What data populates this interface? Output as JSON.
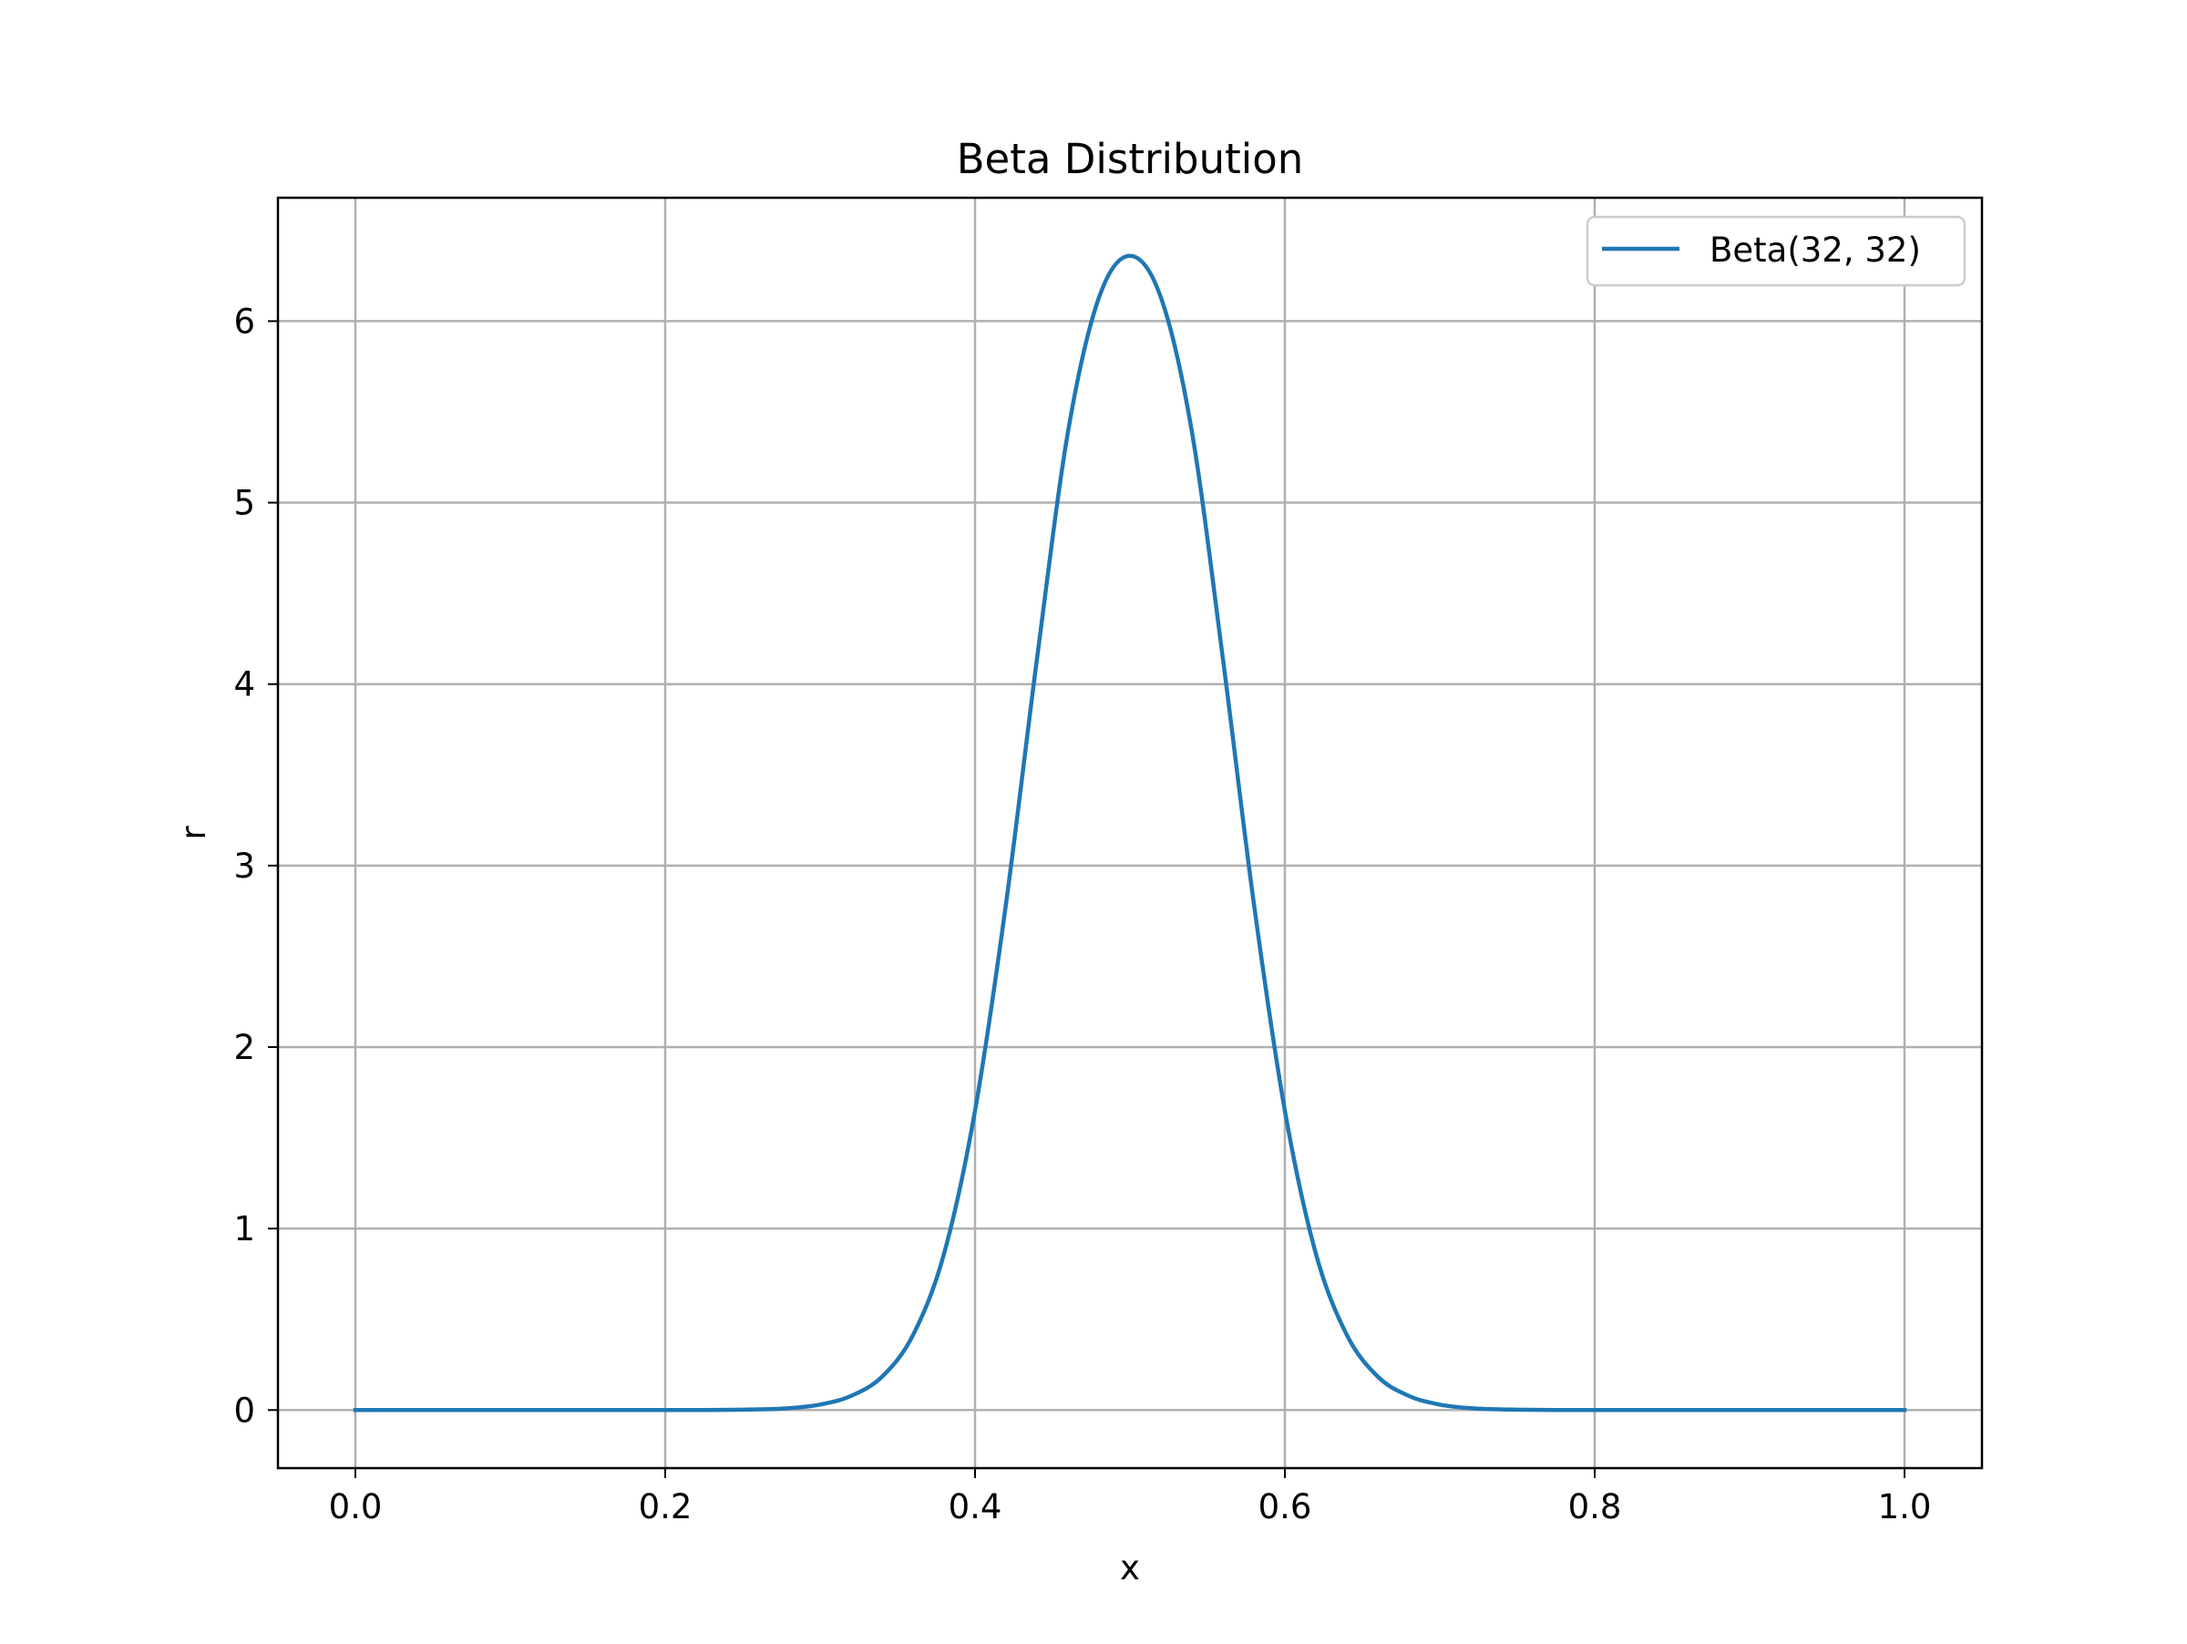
{
  "chart_data": {
    "type": "line",
    "title": "Beta Distribution",
    "xlabel": "x",
    "ylabel": "r",
    "xlim": [
      -0.05,
      1.05
    ],
    "ylim": [
      -0.32,
      6.68
    ],
    "xticks": [
      "0.0",
      "0.2",
      "0.4",
      "0.6",
      "0.8",
      "1.0"
    ],
    "yticks": [
      "0",
      "1",
      "2",
      "3",
      "4",
      "5",
      "6"
    ],
    "grid": true,
    "legend_position": "top-right",
    "series": [
      {
        "name": "Beta(32, 32)",
        "color": "#1f77b4",
        "x": [
          0.0,
          0.2,
          0.25,
          0.28,
          0.3,
          0.32,
          0.34,
          0.36,
          0.38,
          0.4,
          0.42,
          0.44,
          0.46,
          0.48,
          0.5,
          0.52,
          0.54,
          0.56,
          0.58,
          0.6,
          0.62,
          0.64,
          0.66,
          0.68,
          0.7,
          0.72,
          0.75,
          0.8,
          1.0
        ],
        "y": [
          0.0,
          0.0,
          0.002,
          0.01,
          0.03,
          0.078,
          0.184,
          0.414,
          0.862,
          1.65,
          2.79,
          4.14,
          5.39,
          6.13,
          6.36,
          6.13,
          5.39,
          4.14,
          2.79,
          1.65,
          0.862,
          0.414,
          0.184,
          0.078,
          0.03,
          0.01,
          0.002,
          0.0,
          0.0
        ]
      }
    ]
  }
}
